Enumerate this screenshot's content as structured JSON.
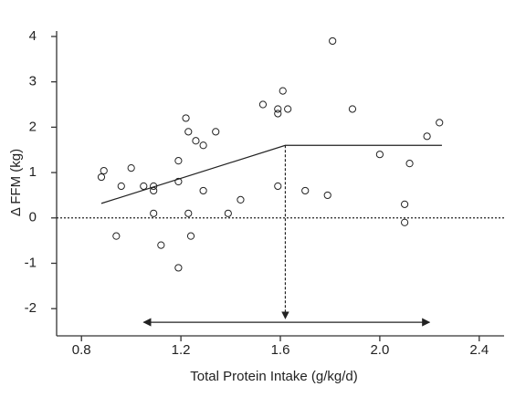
{
  "chart_data": {
    "type": "scatter",
    "x_label": "Total Protein Intake (g/kg/d)",
    "y_label": "Δ FFM (kg)",
    "x": [
      0.88,
      0.89,
      0.94,
      0.96,
      1.0,
      1.05,
      1.09,
      1.09,
      1.09,
      1.12,
      1.19,
      1.19,
      1.19,
      1.22,
      1.23,
      1.23,
      1.24,
      1.26,
      1.29,
      1.29,
      1.34,
      1.39,
      1.44,
      1.53,
      1.59,
      1.59,
      1.61,
      1.63,
      1.59,
      1.7,
      1.79,
      1.81,
      1.89,
      2.0,
      2.1,
      2.1,
      2.12,
      2.19,
      2.24
    ],
    "values": [
      0.9,
      1.04,
      -0.4,
      0.7,
      1.1,
      0.7,
      0.7,
      0.6,
      0.1,
      -0.6,
      1.26,
      0.8,
      -1.1,
      2.2,
      1.9,
      0.1,
      -0.4,
      1.7,
      1.6,
      0.6,
      1.9,
      0.1,
      0.4,
      2.5,
      2.4,
      2.3,
      2.8,
      2.4,
      0.7,
      0.6,
      0.5,
      3.9,
      2.4,
      1.4,
      0.3,
      -0.1,
      1.2,
      1.8,
      2.1
    ],
    "fit_line": {
      "x": [
        0.88,
        1.62,
        2.25
      ],
      "y": [
        0.32,
        1.6,
        1.6
      ]
    },
    "range_arrow": {
      "x": [
        1.05,
        2.2
      ],
      "y": -2.3
    },
    "reference_line": 0,
    "xlim": [
      0.7,
      2.5
    ],
    "ylim": [
      -2.6,
      4.1
    ],
    "xticks": [
      0.8,
      1.2,
      1.6,
      {
        "value": 2,
        "label": "2.0"
      },
      2.4
    ],
    "yticks": [
      -2,
      -1,
      0,
      1,
      2,
      3,
      4
    ]
  }
}
